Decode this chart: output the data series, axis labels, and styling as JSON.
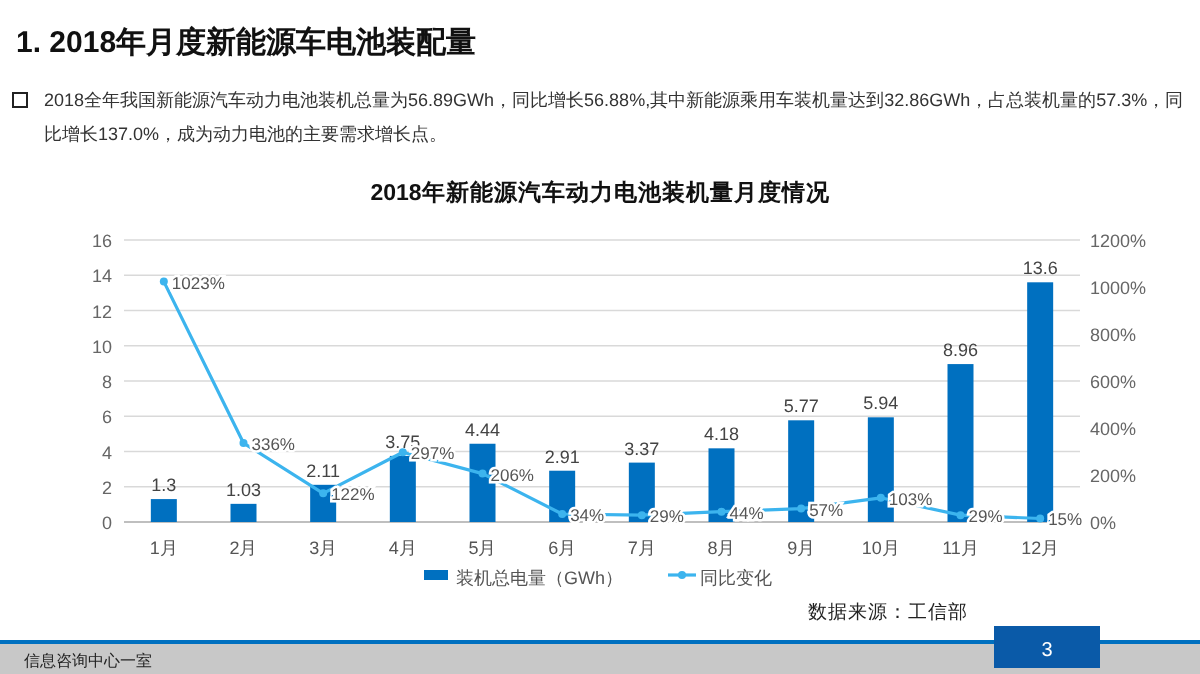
{
  "chart_data": {
    "type": "bar",
    "title": "1. 2018年月度新能源车电池装配量",
    "subtitle": "2018全年我国新能源汽车动力电池装机总量为56.89GWh，同比增长56.88%,其中新能源乘用车装机量达到32.86GWh，占总装机量的57.3%，同比增长137.0%，成为动力电池的主要需求增长点。",
    "annotations": [
      "2018年新能源汽车动力电池装机量月度情况",
      "数据来源：工信部",
      "信息咨询中心一室",
      "3"
    ],
    "categories": [
      "1月",
      "2月",
      "3月",
      "4月",
      "5月",
      "6月",
      "7月",
      "8月",
      "9月",
      "10月",
      "11月",
      "12月"
    ],
    "series": [
      {
        "name": "装机总电量（GWh）",
        "color": "#0070c0",
        "values": [
          1.3,
          1.03,
          2.11,
          3.75,
          4.44,
          2.91,
          3.37,
          4.18,
          5.77,
          5.94,
          8.96,
          13.6
        ],
        "value_labels": [
          "1.3",
          "1.03",
          "2.11",
          "3.75",
          "4.44",
          "2.91",
          "3.37",
          "4.18",
          "5.77",
          "5.94",
          "8.96",
          "13.6"
        ]
      },
      {
        "name": "同比变化",
        "type": "line",
        "axis": "y2",
        "color": "#3cb4ee",
        "marker": "circle",
        "values": [
          1023,
          336,
          122,
          297,
          206,
          34,
          29,
          44,
          57,
          103,
          29,
          15
        ],
        "value_labels": [
          "1023%",
          "336%",
          "122%",
          "297%",
          "206%",
          "34%",
          "29%",
          "44%",
          "57%",
          "103%",
          "29%",
          "15%"
        ]
      }
    ],
    "ylim": [
      0,
      16
    ],
    "yticks": [
      0,
      2,
      4,
      6,
      8,
      10,
      12,
      14,
      16
    ],
    "y2lim": [
      0,
      1200
    ],
    "y2ticks": [
      {
        "value": 0,
        "label": "0%"
      },
      {
        "value": 200,
        "label": "200%"
      },
      {
        "value": 400,
        "label": "400%"
      },
      {
        "value": 600,
        "label": "600%"
      },
      {
        "value": 800,
        "label": "800%"
      },
      {
        "value": 1000,
        "label": "1000%"
      },
      {
        "value": 1200,
        "label": "1200%"
      }
    ],
    "grid": "y",
    "legend": "bottom"
  }
}
